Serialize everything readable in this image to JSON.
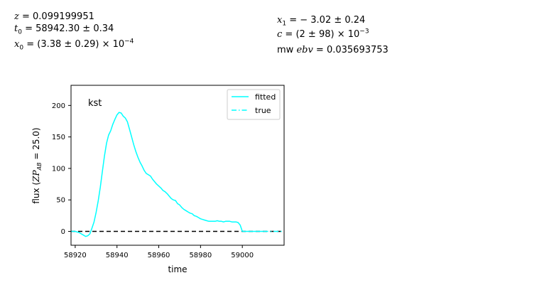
{
  "params": {
    "z_label": "z",
    "z_value": "0.099199951",
    "t0_label": "t",
    "t0_sub": "0",
    "t0_value": "58942.30 ± 0.34",
    "x0_label": "x",
    "x0_sub": "0",
    "x0_value": "(3.38 ± 0.29) × 10",
    "x0_exp": "−4",
    "x1_label": "x",
    "x1_sub": "1",
    "x1_value": "− 3.02 ± 0.24",
    "c_label": "c",
    "c_value": "(2 ± 98) × 10",
    "c_exp": "−3",
    "mwebv_prefix": "mw",
    "mwebv_label": "ebv",
    "mwebv_value": "0.035693753"
  },
  "chart_data": {
    "type": "line",
    "band_label": "kst",
    "xlabel": "time",
    "ylabel_prefix": "flux (",
    "ylabel_zp": "ZP",
    "ylabel_sub": "AB",
    "ylabel_suffix": " = 25.0)",
    "xlim": [
      58918,
      59020
    ],
    "ylim": [
      -22,
      232
    ],
    "xticks": [
      58920,
      58940,
      58960,
      58980,
      59000
    ],
    "yticks": [
      0,
      50,
      100,
      150,
      200
    ],
    "zero_line": true,
    "legend_position": "upper right",
    "colors": {
      "fitted": "#00ffff",
      "true": "#00ffff",
      "zero_line": "#000000"
    },
    "series": [
      {
        "name": "fitted",
        "style": "solid",
        "x": [
          58918,
          58920,
          58921,
          58922,
          58923,
          58924,
          58925,
          58926,
          58927,
          58928,
          58929,
          58930,
          58931,
          58932,
          58933,
          58934,
          58935,
          58936,
          58937,
          58938,
          58939,
          58940,
          58941,
          58942,
          58943,
          58944,
          58945,
          58946,
          58947,
          58948,
          58949,
          58950,
          58951,
          58952,
          58953,
          58954,
          58955,
          58956,
          58957,
          58958,
          58959,
          58960,
          58961,
          58962,
          58963,
          58964,
          58965,
          58966,
          58967,
          58968,
          58969,
          58970,
          58971,
          58972,
          58973,
          58974,
          58975,
          58976,
          58977,
          58978,
          58979,
          58980,
          58981,
          58982,
          58983,
          58984,
          58985,
          58986,
          58987,
          58988,
          58989,
          58990,
          58991,
          58992,
          58993,
          58994,
          58995,
          58996,
          58997,
          58998,
          58999,
          59000,
          59002,
          59005,
          59008,
          59010
        ],
        "y": [
          0,
          0,
          -1,
          -2,
          -4,
          -6,
          -8,
          -7,
          -4,
          5,
          15,
          30,
          48,
          70,
          95,
          120,
          140,
          153,
          160,
          170,
          178,
          185,
          189,
          188,
          183,
          180,
          174,
          162,
          150,
          138,
          127,
          118,
          110,
          104,
          97,
          92,
          90,
          88,
          83,
          79,
          75,
          72,
          69,
          65,
          63,
          60,
          56,
          52,
          50,
          49,
          44,
          42,
          38,
          35,
          33,
          31,
          29,
          28,
          25,
          24,
          22,
          20,
          19,
          18,
          17,
          16,
          16,
          16,
          16,
          17,
          16,
          16,
          15,
          16,
          16,
          16,
          15,
          15,
          15,
          14,
          10,
          0,
          0,
          0,
          0,
          0
        ]
      },
      {
        "name": "true",
        "style": "dashed",
        "x": [
          59010,
          59020
        ],
        "y": [
          0,
          0
        ]
      }
    ]
  }
}
